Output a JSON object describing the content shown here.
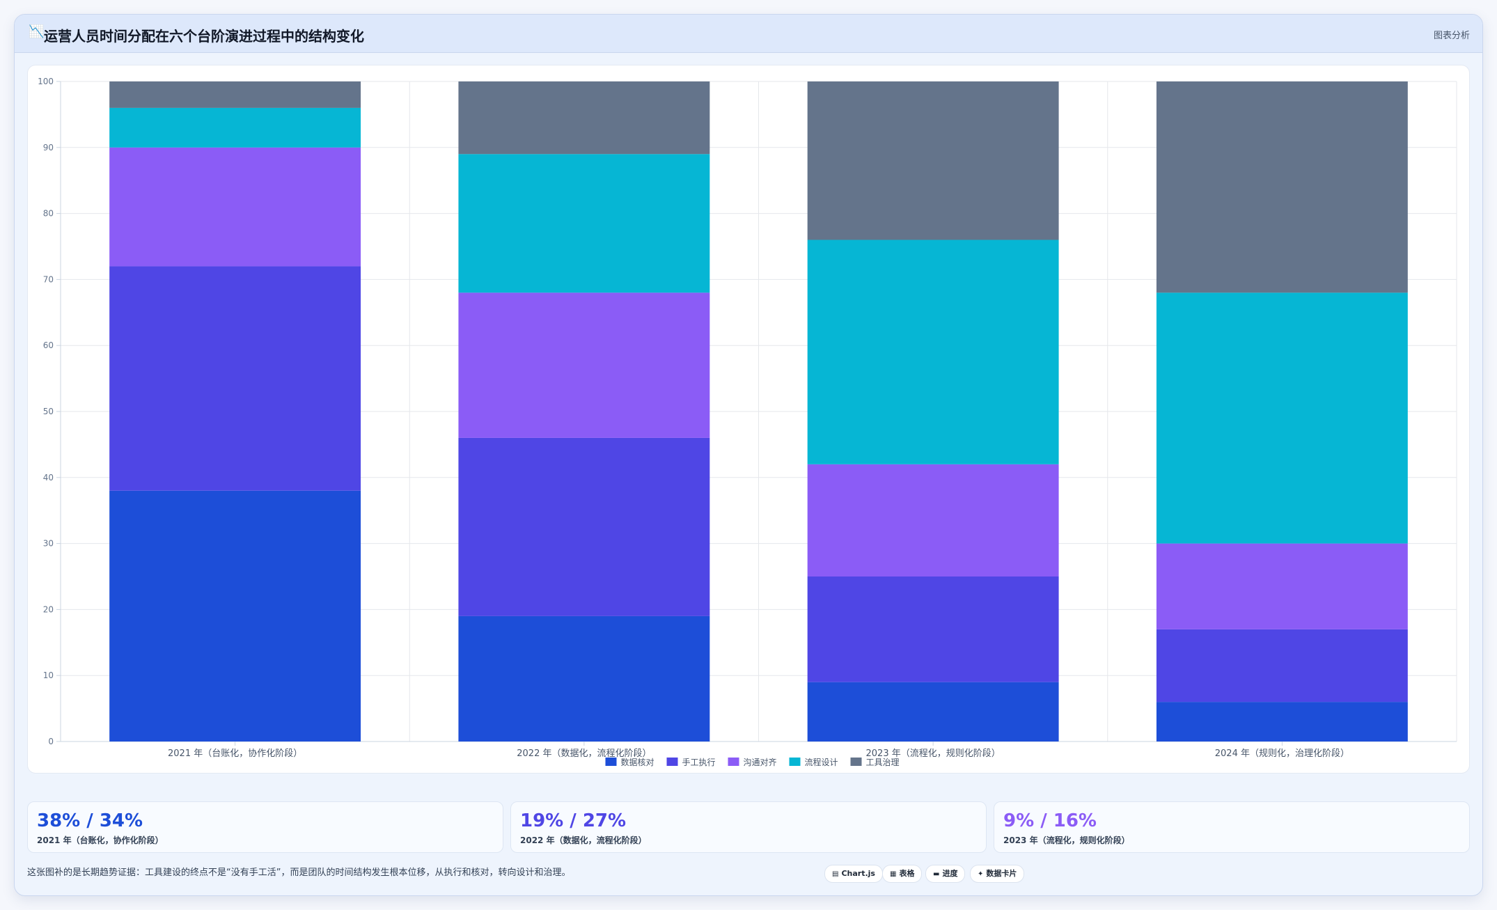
{
  "header": {
    "title": "运营人员时间分配在六个台阶演进过程中的结构变化",
    "title_icon": "📉",
    "link": "图表分析"
  },
  "chart_data": {
    "type": "bar",
    "stacked": true,
    "title": "",
    "xlabel": "",
    "ylabel": "",
    "ylim": [
      0,
      100
    ],
    "yticks": [
      0,
      10,
      20,
      30,
      40,
      50,
      60,
      70,
      80,
      90,
      100
    ],
    "grid": true,
    "legend_position": "bottom",
    "categories": [
      "2021 年（台账化，协作化阶段）",
      "2022 年（数据化，流程化阶段）",
      "2023 年（流程化，规则化阶段）",
      "2024 年（规则化，治理化阶段）"
    ],
    "series": [
      {
        "name": "数据核对",
        "color": "#1d4ed8",
        "values": [
          38,
          19,
          9,
          6
        ]
      },
      {
        "name": "手工执行",
        "color": "#4f46e5",
        "values": [
          34,
          27,
          16,
          11
        ]
      },
      {
        "name": "沟通对齐",
        "color": "#8b5cf6",
        "values": [
          18,
          22,
          17,
          13
        ]
      },
      {
        "name": "流程设计",
        "color": "#06b6d4",
        "values": [
          6,
          21,
          34,
          38
        ]
      },
      {
        "name": "工具治理",
        "color": "#64748b",
        "values": [
          4,
          11,
          24,
          32
        ]
      }
    ]
  },
  "stats": [
    {
      "value": "38% / 34%",
      "label": "2021 年（台账化，协作化阶段）",
      "color": "#1d4ed8"
    },
    {
      "value": "19% / 27%",
      "label": "2022 年（数据化，流程化阶段）",
      "color": "#4f46e5"
    },
    {
      "value": "9% / 16%",
      "label": "2023 年（流程化，规则化阶段）",
      "color": "#8b5cf6"
    }
  ],
  "footer": {
    "note": "这张图补的是长期趋势证据：工具建设的终点不是“没有手工活”，而是团队的时间结构发生根本位移，从执行和核对，转向设计和治理。",
    "pills": [
      {
        "icon": "▤",
        "label": "Chart.js"
      },
      {
        "icon": "▦",
        "label": "表格"
      },
      {
        "icon": "▬",
        "label": "进度"
      },
      {
        "icon": "✦",
        "label": "数据卡片"
      }
    ]
  }
}
